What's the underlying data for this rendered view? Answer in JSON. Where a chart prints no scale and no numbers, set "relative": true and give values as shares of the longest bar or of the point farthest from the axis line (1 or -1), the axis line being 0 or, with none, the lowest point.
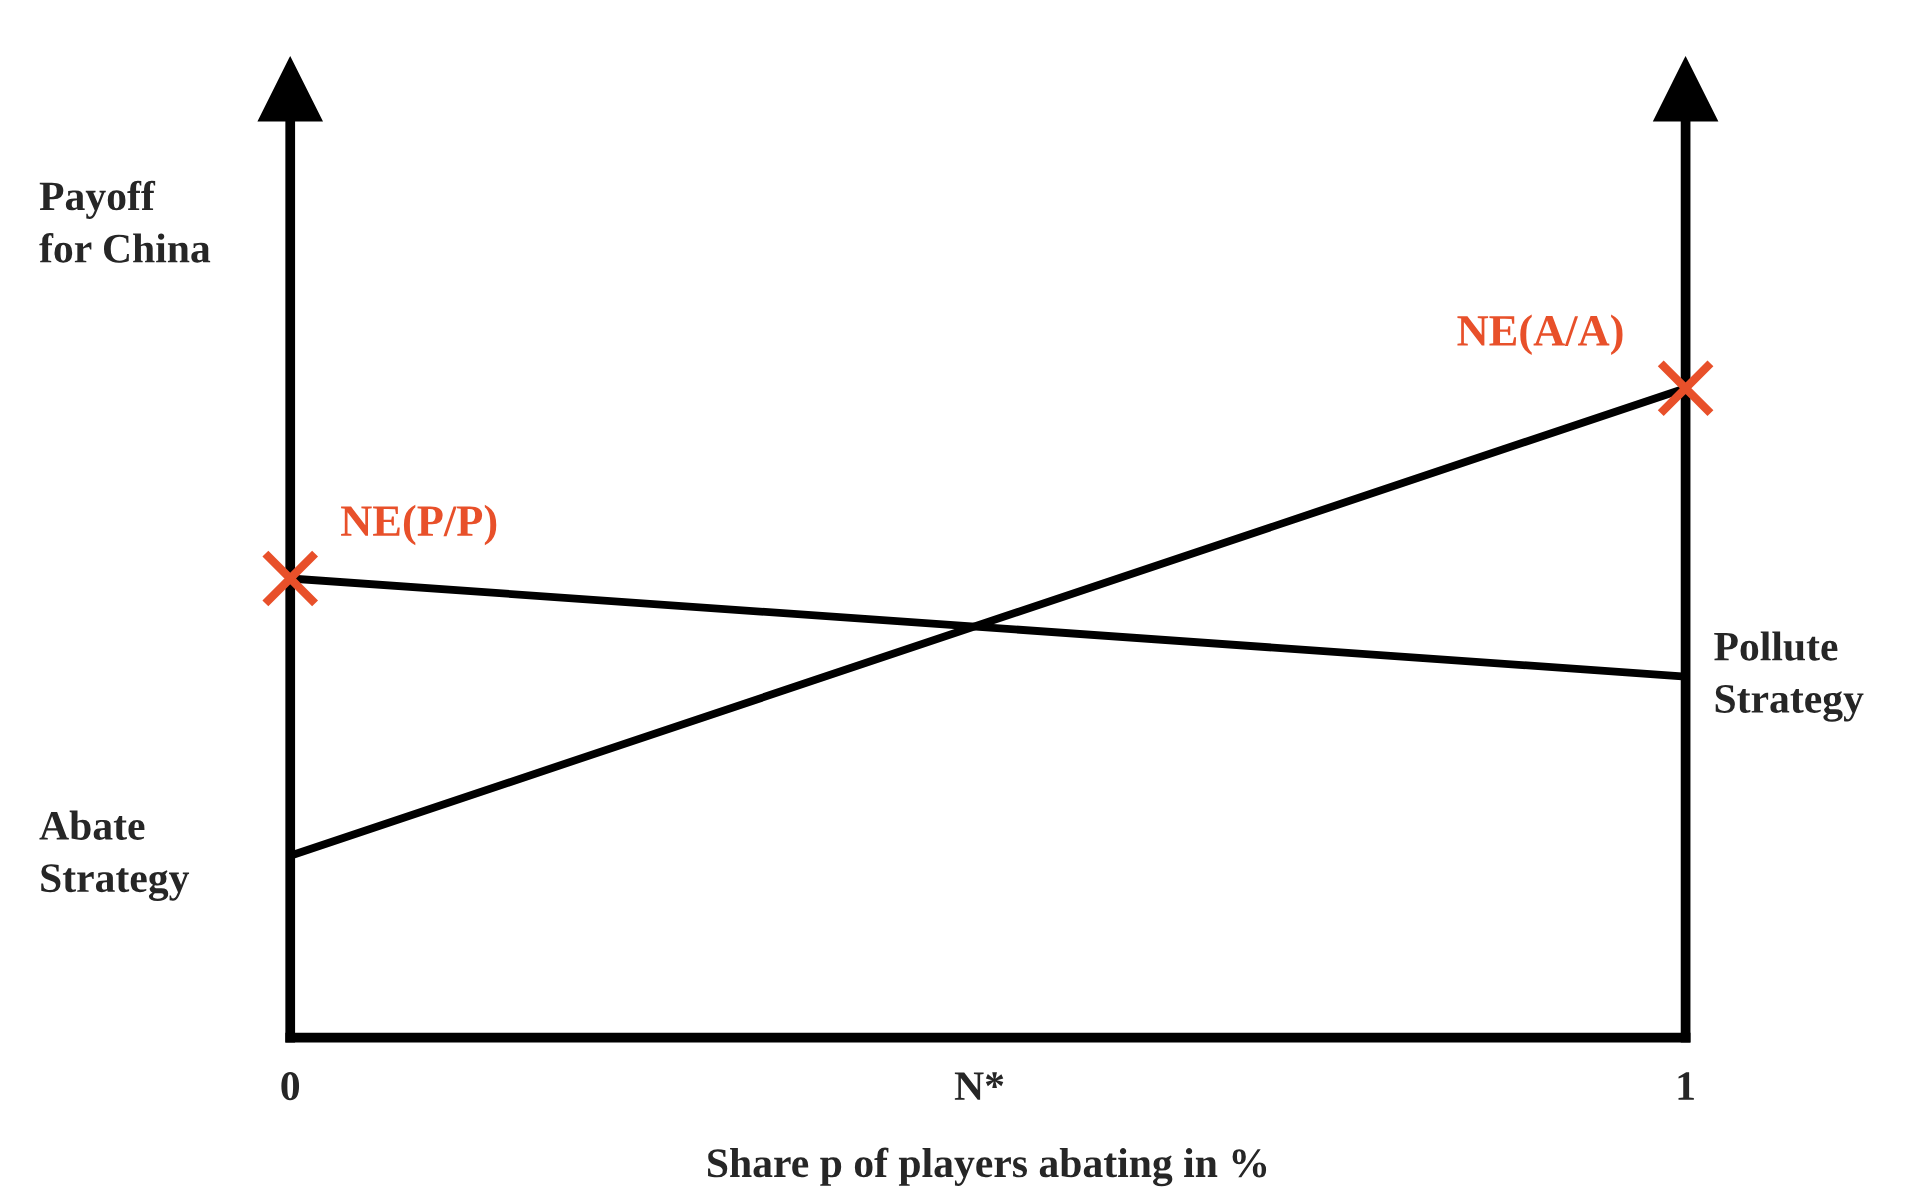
{
  "chart_data": {
    "type": "line",
    "relative": true,
    "xlabel": "Share p of players abating in %",
    "ylabel": "Payoff for China",
    "x": [
      0,
      1
    ],
    "xlim": [
      0,
      1
    ],
    "xticks": [
      0,
      {
        "value": 0.494,
        "label": "N*"
      },
      1
    ],
    "tick_labels": "x",
    "grid": false,
    "line_style": "solid",
    "series": [
      {
        "name": "Abate Strategy",
        "color": "#000000",
        "values": [
          0.28,
          1
        ]
      },
      {
        "name": "Pollute Strategy",
        "color": "#000000",
        "values": [
          0.707,
          0.556
        ]
      },
      {
        "type": "scatter",
        "marker": "cross",
        "color": "#e8502a",
        "values": [
          0.707,
          1
        ]
      }
    ],
    "annotations": [
      {
        "text": "NE(P/P)",
        "x": 0,
        "y": 0.707
      },
      {
        "text": "NE(A/A)",
        "x": 1,
        "y": 1
      }
    ]
  }
}
